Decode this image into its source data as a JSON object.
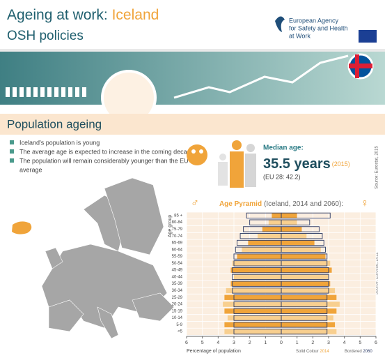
{
  "header": {
    "title": "Ageing at work: ",
    "country": "Iceland",
    "subtitle": "OSH policies",
    "agency": [
      "European Agency",
      "for Safety and Health",
      "at Work"
    ]
  },
  "section": {
    "title": "Population ageing"
  },
  "bullets": [
    "Iceland's population is young",
    "The average age is expected to increase in the coming decades",
    "The population will remain considerably younger than the EU",
    "average"
  ],
  "median": {
    "label": "Median age:",
    "value": "35.5 years",
    "year": "(2015)",
    "eu": "(EU 28: 42.2)",
    "source": "Source: Eurostat, 2015"
  },
  "chart_data": {
    "type": "pyramid",
    "title": "Age Pyramid",
    "subtitle": "(Iceland, 2014 and 2060):",
    "male_symbol": "♂",
    "female_symbol": "♀",
    "ylabel": "Age group",
    "xlabel": "Percentage of population",
    "source": "Source: Eurostat, 2011",
    "legend": {
      "solid": "Solid Colour ",
      "solid_year": "2014",
      "bordered": "Bordered ",
      "bordered_year": "2060"
    },
    "categories": [
      "85 +",
      "80-84",
      "75-79",
      "70-74",
      "65-69",
      "60-64",
      "55-59",
      "50-54",
      "45-49",
      "40-44",
      "35-39",
      "30-34",
      "25-29",
      "20-24",
      "15-19",
      "10-14",
      "5-9",
      "<5"
    ],
    "series": [
      {
        "style": "solid",
        "values": [
          -0.6,
          -0.8,
          -1.2,
          -1.5,
          -2.1,
          -2.5,
          -2.8,
          -3.1,
          -3.2,
          -3.0,
          -3.2,
          -3.5,
          -3.6,
          -3.7,
          -3.6,
          -3.4,
          -3.6,
          -3.6
        ]
      },
      {
        "style": "solid",
        "values": [
          1.0,
          1.0,
          1.3,
          1.6,
          2.1,
          2.5,
          2.8,
          3.1,
          3.2,
          3.0,
          3.1,
          3.4,
          3.5,
          3.7,
          3.5,
          3.3,
          3.4,
          3.5
        ]
      },
      {
        "style": "bordered",
        "values": [
          -2.2,
          -2.0,
          -2.4,
          -2.6,
          -2.8,
          -2.9,
          -3.0,
          -3.0,
          -3.1,
          -3.1,
          -3.1,
          -3.1,
          -3.0,
          -3.0,
          -3.0,
          -3.0,
          -3.0,
          -3.0
        ]
      },
      {
        "style": "bordered",
        "values": [
          3.1,
          1.8,
          2.4,
          2.6,
          2.7,
          2.8,
          2.9,
          2.9,
          3.0,
          3.0,
          3.0,
          3.0,
          2.9,
          2.9,
          2.9,
          2.9,
          2.9,
          2.9
        ]
      }
    ],
    "colors": [
      "#f0a43a",
      "#f8cf8f"
    ],
    "border_color": "#2b3a66",
    "xlim": [
      -6,
      6
    ],
    "xticks": [
      {
        "value": -6,
        "label": "6"
      },
      {
        "value": -5,
        "label": "5"
      },
      {
        "value": -4,
        "label": "4"
      },
      {
        "value": -3,
        "label": "3"
      },
      {
        "value": -2,
        "label": "2"
      },
      {
        "value": -1,
        "label": "1"
      },
      0,
      1,
      2,
      3,
      4,
      5,
      6
    ],
    "grid": true
  }
}
